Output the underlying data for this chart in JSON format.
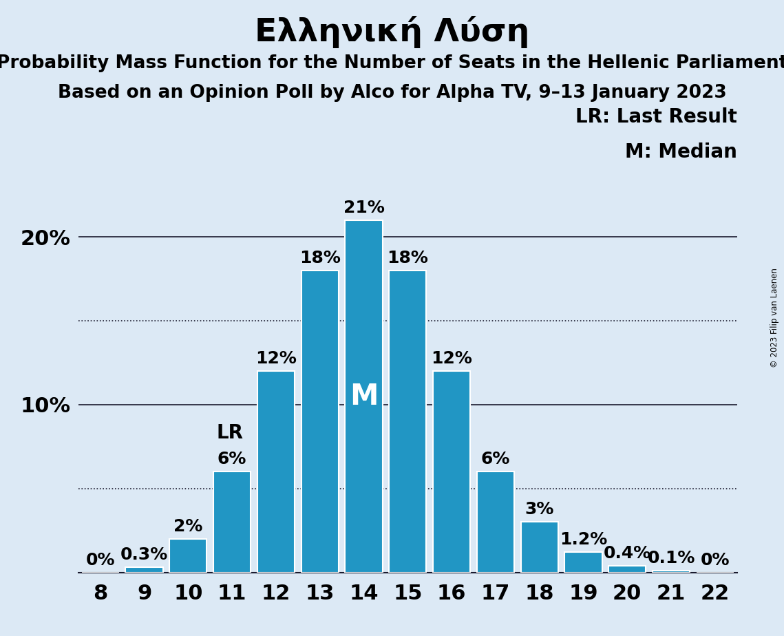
{
  "title": "Ελληνική Λύση",
  "subtitle1": "Probability Mass Function for the Number of Seats in the Hellenic Parliament",
  "subtitle2": "Based on an Opinion Poll by Alco for Alpha TV, 9–13 January 2023",
  "copyright": "© 2023 Filip van Laenen",
  "legend_lr": "LR: Last Result",
  "legend_m": "M: Median",
  "seats": [
    8,
    9,
    10,
    11,
    12,
    13,
    14,
    15,
    16,
    17,
    18,
    19,
    20,
    21,
    22
  ],
  "values": [
    0.0,
    0.3,
    2.0,
    6.0,
    12.0,
    18.0,
    21.0,
    18.0,
    12.0,
    6.0,
    3.0,
    1.2,
    0.4,
    0.1,
    0.0
  ],
  "bar_color": "#2196C4",
  "bar_edge_color": "white",
  "background_color": "#dce9f5",
  "lr_seat": 11,
  "median_seat": 14,
  "ylim": [
    0,
    23.5
  ],
  "yticks": [
    10,
    20
  ],
  "dotted_lines": [
    5,
    15
  ],
  "title_fontsize": 34,
  "subtitle_fontsize": 19,
  "tick_fontsize": 22,
  "bar_label_fontsize": 18,
  "legend_fontsize": 20,
  "lr_label_fontsize": 20
}
